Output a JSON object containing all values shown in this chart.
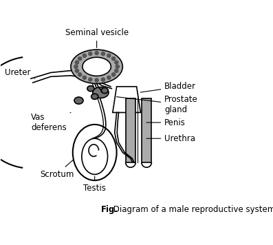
{
  "title": "",
  "caption_bold": "Fig.",
  "caption_text": "     Diagram of a male reproductive system.",
  "background_color": "#ffffff",
  "line_color": "#000000",
  "gray_fill": "#888888",
  "labels": {
    "seminal_vesicle": "Seminal vesicle",
    "ureter": "Ureter",
    "bladder": "Bladder",
    "prostate_gland": "Prostate\ngland",
    "penis": "Penis",
    "urethra": "Urethra",
    "vas_deferens": "Vas\ndeferens",
    "scrotum": "Scrotum",
    "testis": "Testis"
  },
  "figsize": [
    3.97,
    3.56
  ],
  "dpi": 100
}
